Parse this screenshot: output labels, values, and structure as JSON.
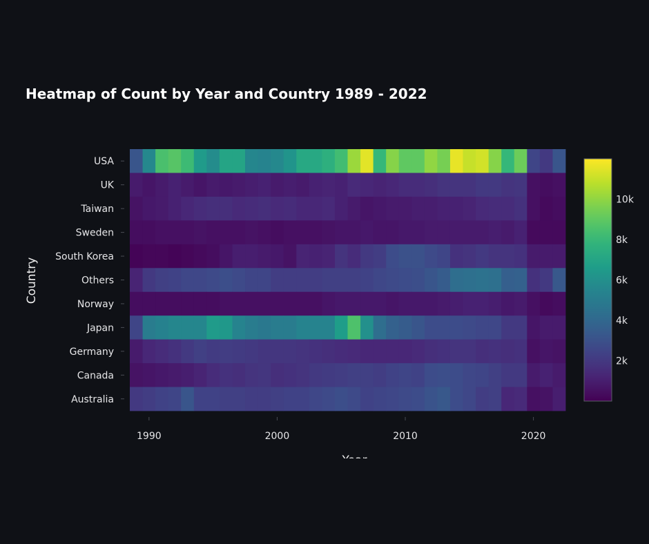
{
  "chart_data": {
    "type": "heatmap",
    "title": "Heatmap of Count by Year and Country 1989 - 2022",
    "xlabel": "Year",
    "ylabel": "Country",
    "x": [
      1989,
      1990,
      1991,
      1992,
      1993,
      1994,
      1995,
      1996,
      1997,
      1998,
      1999,
      2000,
      2001,
      2002,
      2003,
      2004,
      2005,
      2006,
      2007,
      2008,
      2009,
      2010,
      2011,
      2012,
      2013,
      2014,
      2015,
      2016,
      2017,
      2018,
      2019,
      2020,
      2021,
      2022
    ],
    "x_ticks": [
      1990,
      2000,
      2010,
      2020
    ],
    "xlim": [
      1988.5,
      2022.5
    ],
    "y": [
      "USA",
      "UK",
      "Taiwan",
      "Sweden",
      "South Korea",
      "Others",
      "Norway",
      "Japan",
      "Germany",
      "Canada",
      "Australia"
    ],
    "z": [
      [
        3200,
        5600,
        8500,
        8800,
        8200,
        6500,
        5800,
        7000,
        7000,
        5500,
        5400,
        5600,
        6200,
        7200,
        7200,
        7600,
        8300,
        10200,
        11500,
        8000,
        9800,
        9000,
        9000,
        10000,
        9500,
        11600,
        11000,
        11200,
        9800,
        8000,
        9300,
        2500,
        2000,
        3200
      ],
      [
        900,
        700,
        900,
        1100,
        900,
        700,
        900,
        800,
        900,
        1000,
        1100,
        900,
        1000,
        900,
        1100,
        1200,
        1100,
        1400,
        1300,
        1200,
        1300,
        1500,
        1500,
        1600,
        1800,
        1800,
        1800,
        2000,
        2000,
        1800,
        1900,
        500,
        400,
        500
      ],
      [
        600,
        800,
        900,
        1100,
        1300,
        1500,
        1600,
        1600,
        1400,
        1500,
        1600,
        1400,
        1500,
        1300,
        1300,
        1400,
        1100,
        900,
        700,
        800,
        900,
        900,
        1000,
        1000,
        1100,
        1100,
        1200,
        1400,
        1500,
        1500,
        1700,
        500,
        300,
        400
      ],
      [
        400,
        400,
        500,
        500,
        500,
        600,
        500,
        500,
        500,
        600,
        500,
        400,
        500,
        500,
        500,
        600,
        700,
        700,
        800,
        700,
        700,
        800,
        800,
        900,
        900,
        900,
        900,
        900,
        1000,
        900,
        1100,
        300,
        300,
        300
      ],
      [
        100,
        200,
        200,
        100,
        200,
        300,
        400,
        700,
        1000,
        1000,
        900,
        800,
        600,
        1200,
        1100,
        1200,
        1800,
        1500,
        2000,
        2200,
        2800,
        3000,
        3000,
        2700,
        2500,
        1700,
        1800,
        2000,
        1800,
        1800,
        1700,
        900,
        900,
        900
      ],
      [
        1200,
        2000,
        2300,
        2400,
        2600,
        2600,
        2700,
        2900,
        2700,
        2500,
        2500,
        2200,
        2200,
        2200,
        2200,
        2300,
        2300,
        2300,
        2400,
        2600,
        2700,
        2800,
        2900,
        3200,
        3500,
        4300,
        4400,
        4500,
        4400,
        3600,
        3700,
        1700,
        2000,
        3300
      ],
      [
        400,
        400,
        400,
        400,
        400,
        400,
        400,
        500,
        500,
        500,
        500,
        500,
        500,
        500,
        500,
        700,
        800,
        800,
        800,
        800,
        700,
        800,
        800,
        800,
        900,
        1000,
        1100,
        1100,
        1000,
        800,
        900,
        500,
        300,
        400
      ],
      [
        2500,
        5000,
        5300,
        5500,
        5500,
        5500,
        6500,
        6400,
        5400,
        5000,
        4800,
        5000,
        5000,
        5400,
        5400,
        5400,
        6600,
        8600,
        6000,
        4300,
        3700,
        3500,
        3200,
        2800,
        2800,
        2800,
        2700,
        2600,
        2600,
        2000,
        2000,
        700,
        900,
        900
      ],
      [
        900,
        1300,
        1500,
        1700,
        2000,
        2300,
        2100,
        2200,
        2100,
        2000,
        1900,
        1900,
        1900,
        1800,
        1700,
        1600,
        1500,
        1400,
        1300,
        1300,
        1300,
        1300,
        1400,
        1600,
        1700,
        1800,
        1800,
        1600,
        1700,
        1600,
        1700,
        500,
        700,
        600
      ],
      [
        600,
        700,
        800,
        900,
        1000,
        1200,
        1500,
        1700,
        1600,
        1800,
        1900,
        1600,
        1700,
        1800,
        2000,
        2100,
        2200,
        2300,
        2300,
        2200,
        2400,
        2500,
        2400,
        2800,
        2900,
        2800,
        2600,
        2500,
        2300,
        2000,
        2000,
        900,
        1100,
        900
      ],
      [
        2000,
        2200,
        2400,
        2500,
        3200,
        2400,
        2400,
        2300,
        2300,
        2200,
        2200,
        2300,
        2400,
        2400,
        2600,
        2700,
        2900,
        2700,
        2400,
        2500,
        2600,
        2700,
        2800,
        3100,
        3300,
        2800,
        2600,
        2200,
        2300,
        1300,
        1400,
        500,
        600,
        1000
      ]
    ],
    "zmin": 0,
    "zmax": 12000,
    "colorscale": "Viridis",
    "colorbar_ticks": [
      {
        "value": 2000,
        "label": "2k"
      },
      {
        "value": 4000,
        "label": "4k"
      },
      {
        "value": 6000,
        "label": "6k"
      },
      {
        "value": 8000,
        "label": "8k"
      },
      {
        "value": 10000,
        "label": "10k"
      }
    ],
    "grid": false,
    "colorbar_placement": "right"
  }
}
